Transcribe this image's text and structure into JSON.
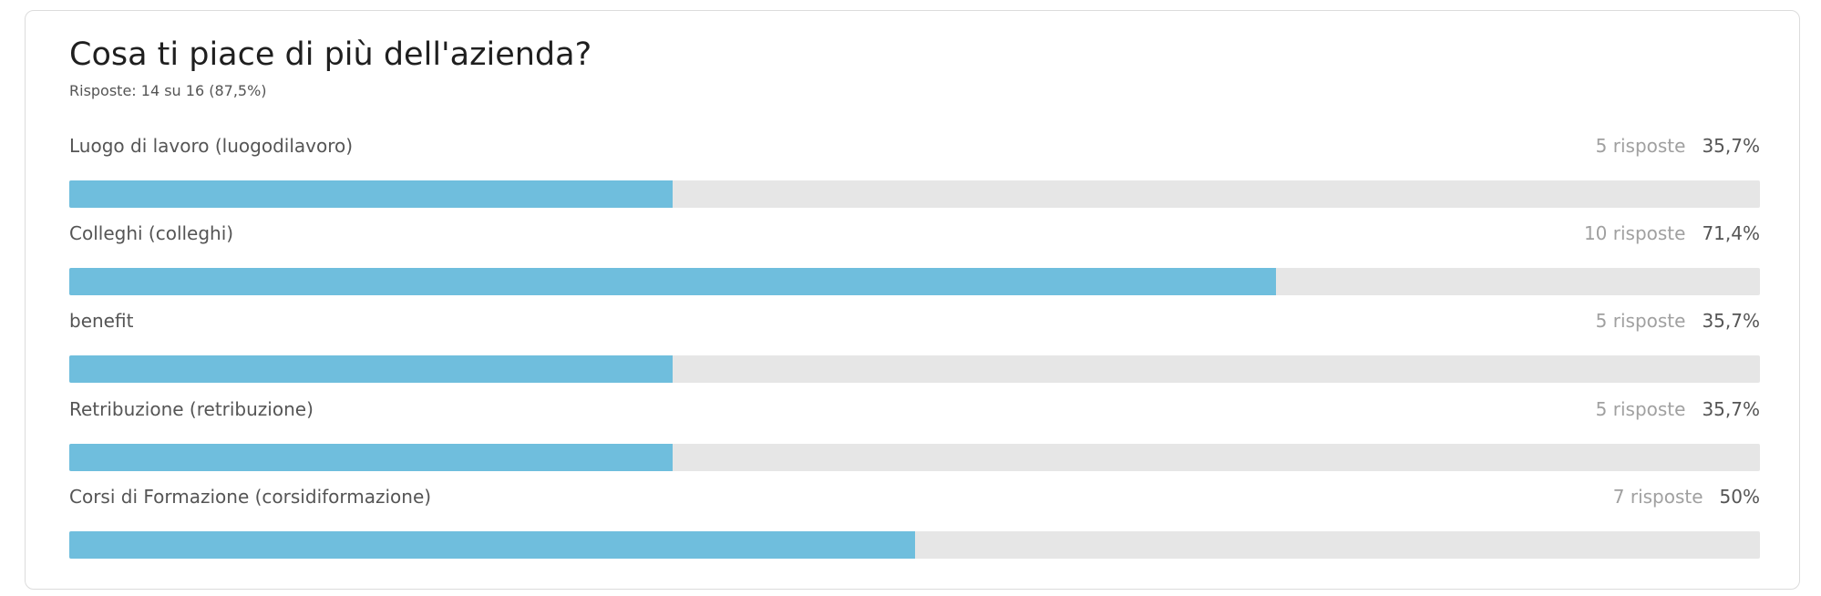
{
  "chart_data": {
    "type": "bar",
    "orientation": "horizontal",
    "title": "Cosa ti piace di più dell'azienda?",
    "subtitle": "Risposte: 14 su 16 (87,5%)",
    "categories": [
      "Luogo di lavoro (luogodilavoro)",
      "Colleghi (colleghi)",
      "benefit",
      "Retribuzione (retribuzione)",
      "Corsi di Formazione (corsidiformazione)"
    ],
    "response_labels": [
      "5 risposte",
      "10 risposte",
      "5 risposte",
      "5 risposte",
      "7 risposte"
    ],
    "values": [
      35.7,
      71.4,
      35.7,
      35.7,
      50
    ],
    "value_labels": [
      "35,7%",
      "71,4%",
      "35,7%",
      "35,7%",
      "50%"
    ],
    "xlim": [
      0,
      100
    ],
    "color": "#6fbedd",
    "track_color": "#e6e6e6"
  }
}
